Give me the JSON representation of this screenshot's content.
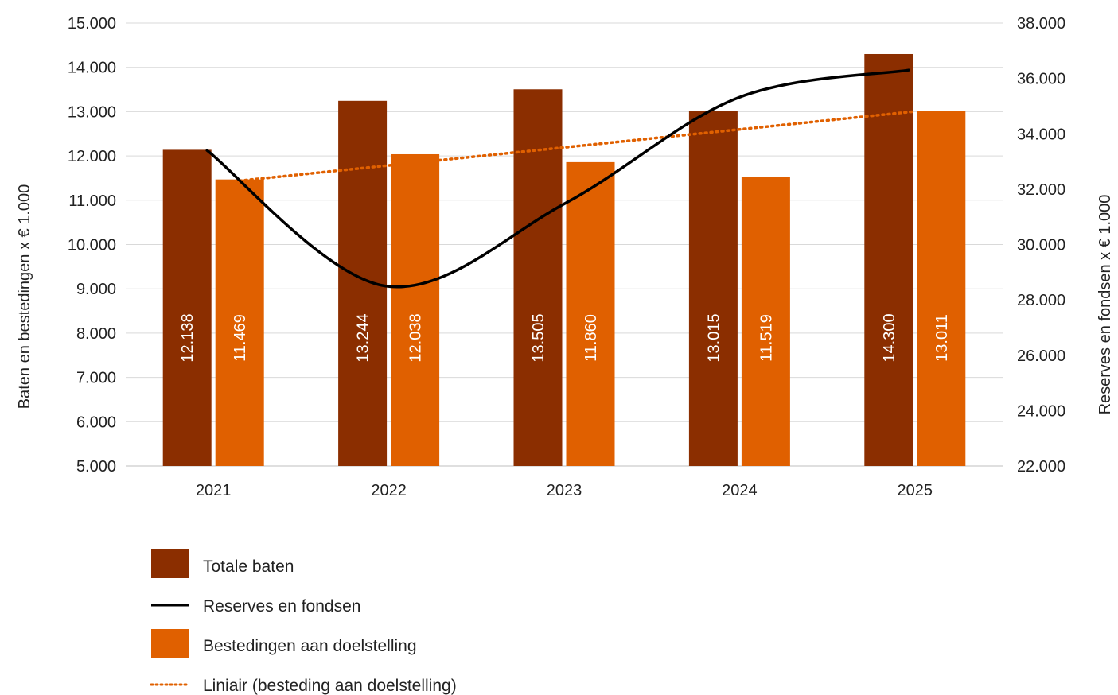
{
  "chart_data": {
    "type": "bar",
    "categories": [
      "2021",
      "2022",
      "2023",
      "2024",
      "2025"
    ],
    "series": [
      {
        "name": "Totale baten",
        "type": "bar",
        "axis": "left",
        "color": "#8B2E00",
        "values": [
          12138,
          13244,
          13505,
          13015,
          14300
        ],
        "labels": [
          "12.138",
          "13.244",
          "13.505",
          "13.015",
          "14.300"
        ]
      },
      {
        "name": "Bestedingen aan doelstelling",
        "type": "bar",
        "axis": "left",
        "color": "#E06000",
        "values": [
          11469,
          12038,
          11860,
          11519,
          13011
        ],
        "labels": [
          "11.469",
          "12.038",
          "11.860",
          "11.519",
          "13.011"
        ]
      },
      {
        "name": "Reserves en fondsen",
        "type": "line",
        "axis": "right",
        "color": "#000000",
        "values": [
          33400,
          28500,
          31500,
          35300,
          36300
        ]
      },
      {
        "name": "Liniair (besteding aan doelstelling)",
        "type": "trendline",
        "axis": "left",
        "color": "#E06000",
        "values": [
          11440,
          11850,
          12250,
          12650,
          13000
        ]
      }
    ],
    "yleft": {
      "label": "Baten en bestedingen x € 1.000",
      "lim": [
        5000,
        15000
      ],
      "ticks": [
        5000,
        6000,
        7000,
        8000,
        9000,
        10000,
        11000,
        12000,
        13000,
        14000,
        15000
      ],
      "tick_labels": [
        "5.000",
        "6.000",
        "7.000",
        "8.000",
        "9.000",
        "10.000",
        "11.000",
        "12.000",
        "13.000",
        "14.000",
        "15.000"
      ]
    },
    "yright": {
      "label": "Reserves en fondsen x € 1.000",
      "lim": [
        22000,
        38000
      ],
      "ticks": [
        22000,
        24000,
        26000,
        28000,
        30000,
        32000,
        34000,
        36000,
        38000
      ],
      "tick_labels": [
        "22.000",
        "24.000",
        "26.000",
        "28.000",
        "30.000",
        "32.000",
        "34.000",
        "36.000",
        "38.000"
      ]
    },
    "grid": true,
    "legend_position": "bottom"
  }
}
